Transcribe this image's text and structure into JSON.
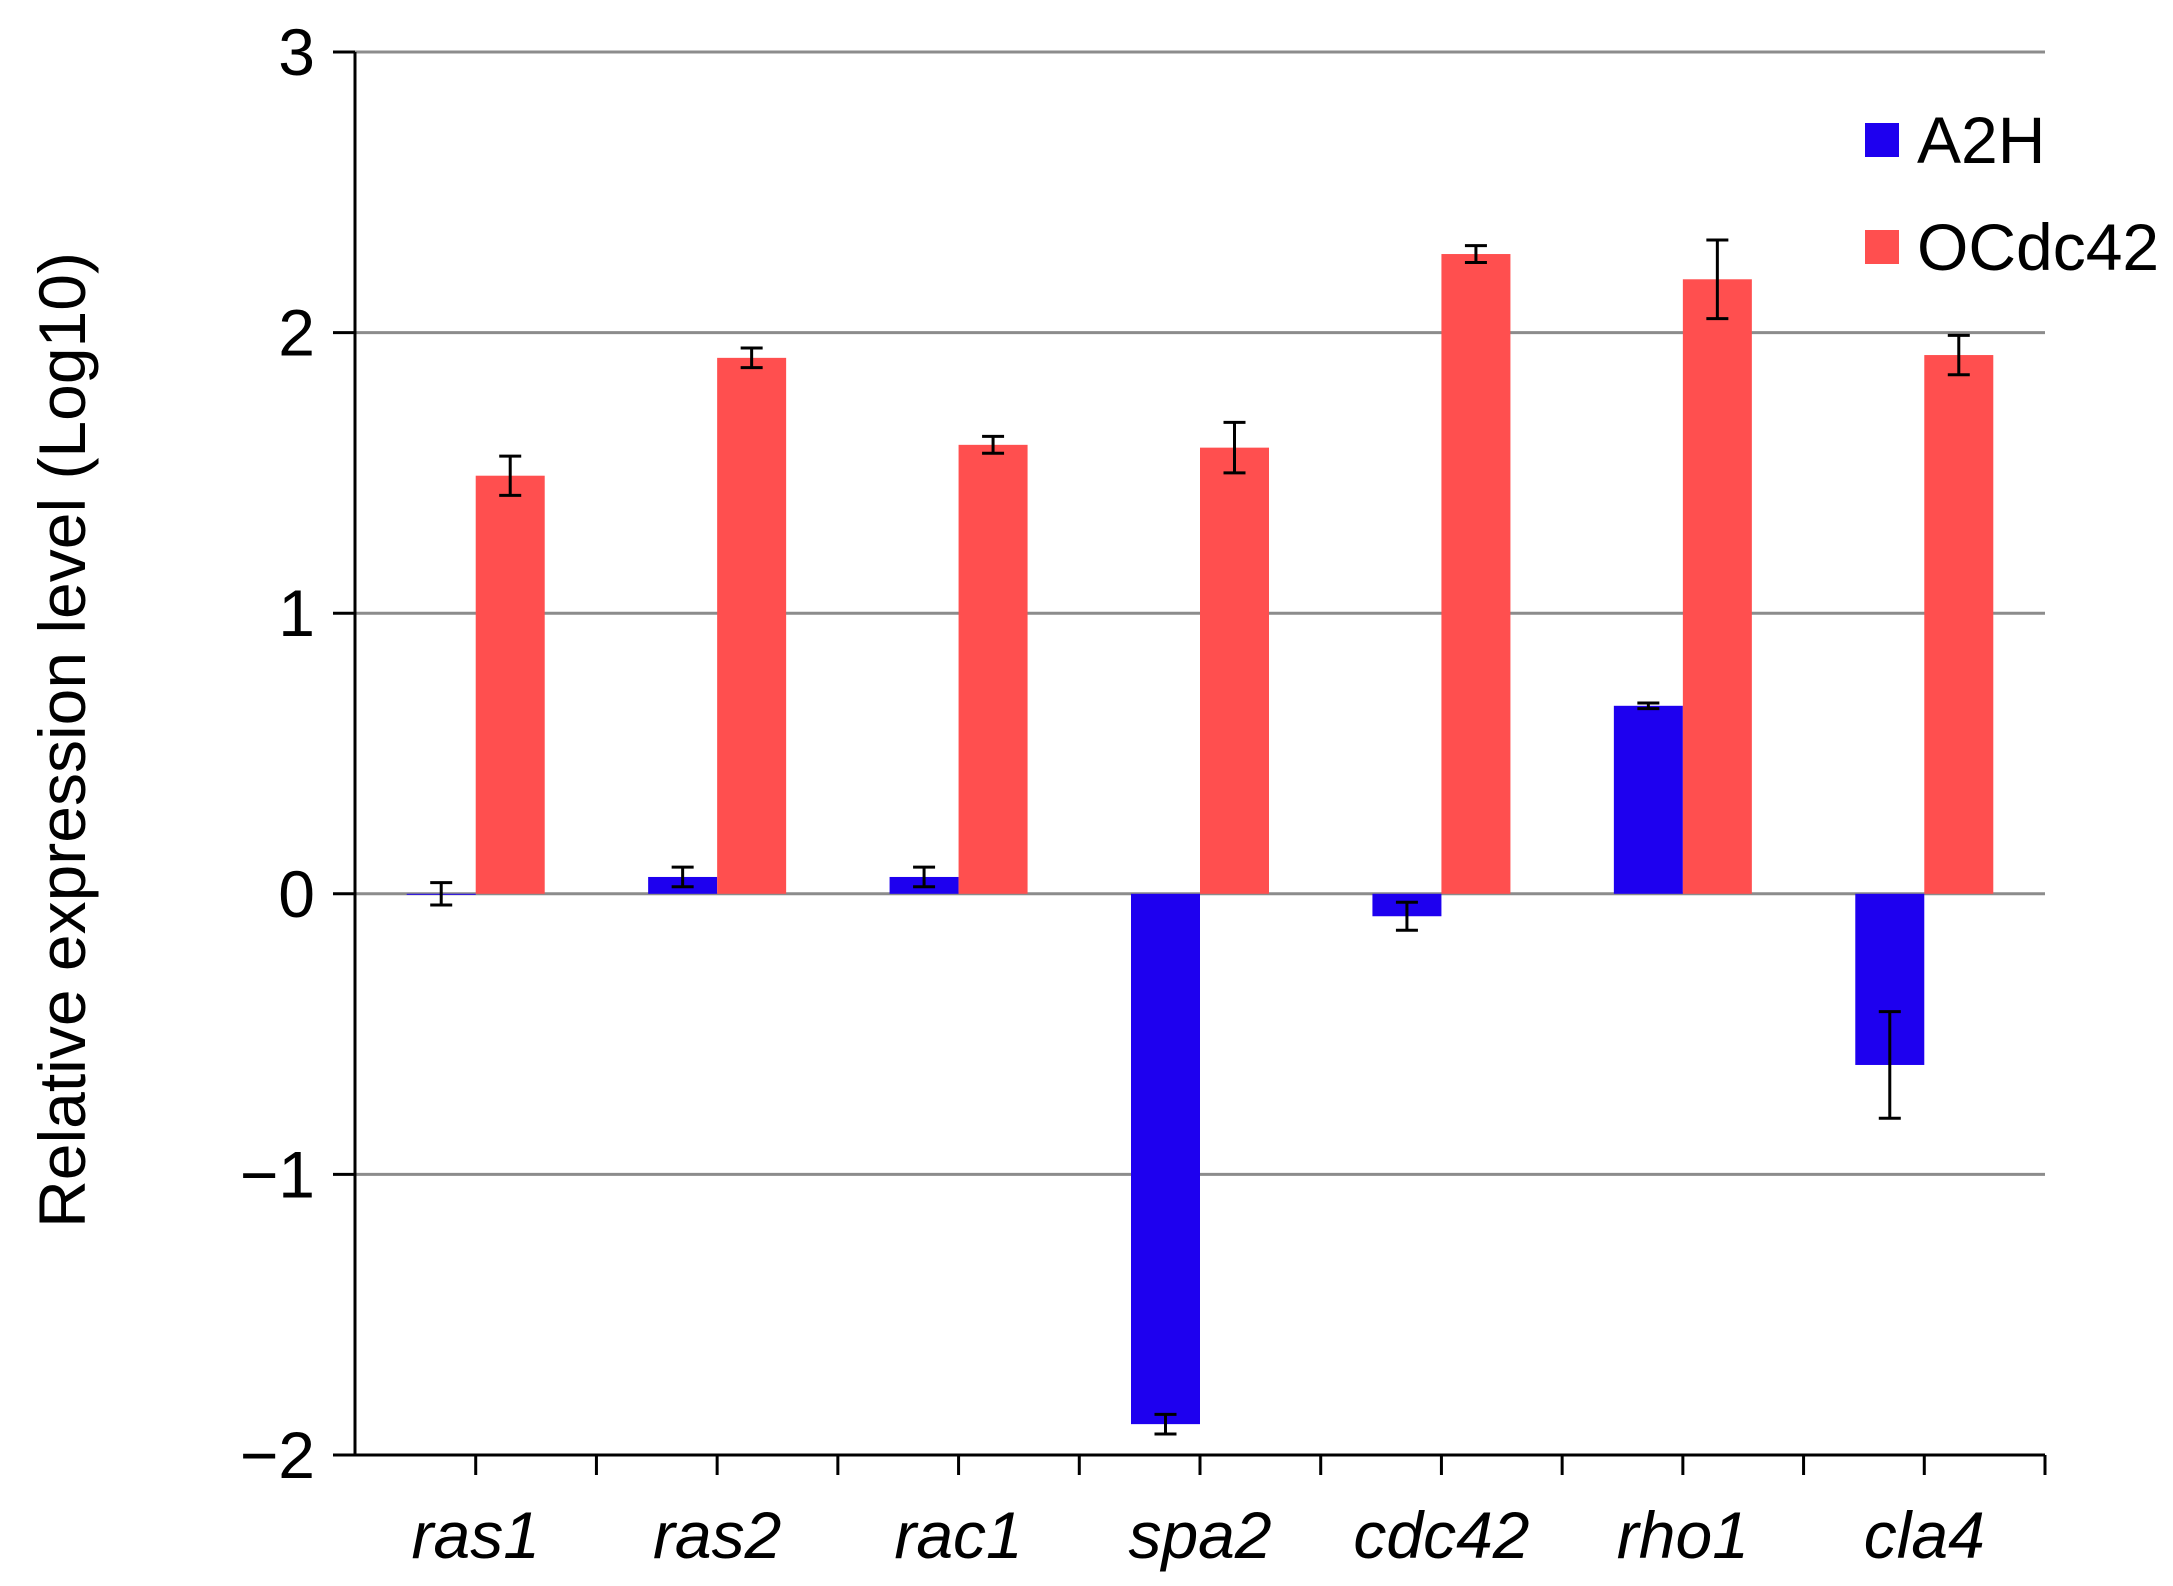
{
  "chart_data": {
    "type": "bar",
    "title": "",
    "xlabel": "",
    "ylabel": "Relative expression level (Log10)",
    "ylim": [
      -2,
      3
    ],
    "yticks": [
      -2,
      -1,
      0,
      1,
      2,
      3
    ],
    "ytick_labels": [
      "−2",
      "−1",
      "0",
      "1",
      "2",
      "3"
    ],
    "grid": true,
    "legend_position": "top-right",
    "categories": [
      "ras1",
      "ras2",
      "rac1",
      "spa2",
      "cdc42",
      "rho1",
      "cla4"
    ],
    "series": [
      {
        "name": "A2H",
        "color": "#1e00ef",
        "values": [
          0.0,
          0.06,
          0.06,
          -1.89,
          -0.08,
          0.67,
          -0.61
        ],
        "errors": [
          0.04,
          0.035,
          0.035,
          0.035,
          0.05,
          0.01,
          0.19
        ]
      },
      {
        "name": "OCdc42",
        "color": "#ff4f4f",
        "values": [
          1.49,
          1.91,
          1.6,
          1.59,
          2.28,
          2.19,
          1.92
        ],
        "errors": [
          0.07,
          0.035,
          0.03,
          0.09,
          0.03,
          0.14,
          0.07
        ]
      }
    ]
  }
}
